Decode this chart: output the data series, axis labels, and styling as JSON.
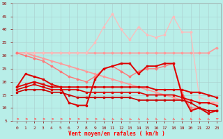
{
  "xlabel": "Vent moyen/en rafales ( km/h )",
  "background_color": "#b8eee8",
  "grid_color": "#aacccc",
  "xlim_min": -0.5,
  "xlim_max": 23.5,
  "ylim": [
    5,
    50
  ],
  "yticks": [
    5,
    10,
    15,
    20,
    25,
    30,
    35,
    40,
    45,
    50
  ],
  "xticks": [
    0,
    1,
    2,
    3,
    4,
    5,
    6,
    7,
    8,
    9,
    10,
    11,
    12,
    13,
    14,
    15,
    16,
    17,
    18,
    19,
    20,
    21,
    22,
    23
  ],
  "series": [
    {
      "x": [
        0,
        1,
        2,
        3,
        4,
        5,
        6,
        7,
        8,
        9,
        10,
        11,
        12,
        13,
        14,
        15,
        16,
        17,
        18,
        19,
        20,
        21,
        22,
        23
      ],
      "y": [
        31,
        31,
        31,
        31,
        31,
        31,
        31,
        31,
        31,
        31,
        31,
        31,
        31,
        31,
        31,
        31,
        31,
        31,
        31,
        31,
        31,
        31,
        31,
        33
      ],
      "color": "#ff9999",
      "linewidth": 1.2,
      "marker": "D",
      "markersize": 1.5
    },
    {
      "x": [
        0,
        1,
        2,
        3,
        4,
        5,
        6,
        7,
        8,
        9,
        10,
        11,
        12,
        13,
        14,
        15,
        16,
        17,
        18,
        19,
        20,
        21,
        22,
        23
      ],
      "y": [
        31,
        31,
        30,
        29,
        28,
        27,
        26,
        25,
        24,
        23,
        22,
        21,
        20,
        19,
        18,
        17,
        16,
        15,
        14,
        13,
        13,
        12,
        12,
        12
      ],
      "color": "#ff9999",
      "linewidth": 1.2,
      "marker": "D",
      "markersize": 1.5
    },
    {
      "x": [
        0,
        1,
        2,
        3,
        4,
        5,
        6,
        7,
        8,
        9,
        10,
        11,
        12,
        13,
        14,
        15,
        16,
        17,
        18,
        19,
        20,
        21,
        22,
        23
      ],
      "y": [
        31,
        31,
        31,
        31,
        31,
        31,
        31,
        31,
        31,
        35,
        41,
        46,
        40,
        36,
        41,
        38,
        37,
        38,
        45,
        39,
        39,
        14,
        13,
        12
      ],
      "color": "#ffbbbb",
      "linewidth": 0.9,
      "marker": "D",
      "markersize": 1.5
    },
    {
      "x": [
        0,
        1,
        2,
        3,
        4,
        5,
        6,
        7,
        8,
        9,
        10,
        11,
        12,
        13,
        14,
        15,
        16,
        17,
        18,
        19,
        20,
        21,
        22,
        23
      ],
      "y": [
        31,
        30,
        29,
        28,
        26,
        24,
        22,
        21,
        20,
        22,
        25,
        26,
        24,
        22,
        24,
        25,
        25,
        26,
        27,
        16,
        10,
        10,
        9,
        9
      ],
      "color": "#ff7777",
      "linewidth": 1.0,
      "marker": "D",
      "markersize": 1.5
    },
    {
      "x": [
        0,
        1,
        2,
        3,
        4,
        5,
        6,
        7,
        8,
        9,
        10,
        11,
        12,
        13,
        14,
        15,
        16,
        17,
        18,
        19,
        20,
        21,
        22,
        23
      ],
      "y": [
        18,
        23,
        22,
        21,
        19,
        18,
        12,
        11,
        11,
        21,
        25,
        26,
        27,
        27,
        23,
        26,
        26,
        27,
        27,
        15,
        9,
        10,
        8,
        9
      ],
      "color": "#dd0000",
      "linewidth": 1.4,
      "marker": "s",
      "markersize": 2.0
    },
    {
      "x": [
        0,
        1,
        2,
        3,
        4,
        5,
        6,
        7,
        8,
        9,
        10,
        11,
        12,
        13,
        14,
        15,
        16,
        17,
        18,
        19,
        20,
        21,
        22,
        23
      ],
      "y": [
        18,
        19,
        20,
        19,
        18,
        18,
        18,
        18,
        18,
        18,
        18,
        18,
        18,
        18,
        18,
        18,
        17,
        17,
        17,
        17,
        16,
        16,
        15,
        14
      ],
      "color": "#dd0000",
      "linewidth": 1.4,
      "marker": "s",
      "markersize": 2.0
    },
    {
      "x": [
        0,
        1,
        2,
        3,
        4,
        5,
        6,
        7,
        8,
        9,
        10,
        11,
        12,
        13,
        14,
        15,
        16,
        17,
        18,
        19,
        20,
        21,
        22,
        23
      ],
      "y": [
        17,
        18,
        19,
        18,
        17,
        17,
        17,
        17,
        16,
        16,
        16,
        16,
        16,
        16,
        16,
        15,
        15,
        15,
        15,
        14,
        13,
        12,
        12,
        11
      ],
      "color": "#dd0000",
      "linewidth": 1.2,
      "marker": "s",
      "markersize": 2.0
    },
    {
      "x": [
        0,
        1,
        2,
        3,
        4,
        5,
        6,
        7,
        8,
        9,
        10,
        11,
        12,
        13,
        14,
        15,
        16,
        17,
        18,
        19,
        20,
        21,
        22,
        23
      ],
      "y": [
        16,
        17,
        17,
        17,
        16,
        16,
        15,
        14,
        14,
        14,
        14,
        14,
        14,
        14,
        13,
        13,
        13,
        13,
        13,
        13,
        12,
        10,
        9,
        9
      ],
      "color": "#cc0000",
      "linewidth": 1.2,
      "marker": "s",
      "markersize": 2.0
    }
  ],
  "arrows": {
    "y_data": 5.8,
    "color": "#ff6666",
    "directions": [
      0,
      0,
      0,
      0,
      0,
      0,
      0,
      0,
      0,
      0,
      -45,
      -45,
      -45,
      -45,
      -45,
      -45,
      -45,
      -45,
      -45,
      -45,
      -45,
      -45,
      -45,
      45
    ]
  }
}
